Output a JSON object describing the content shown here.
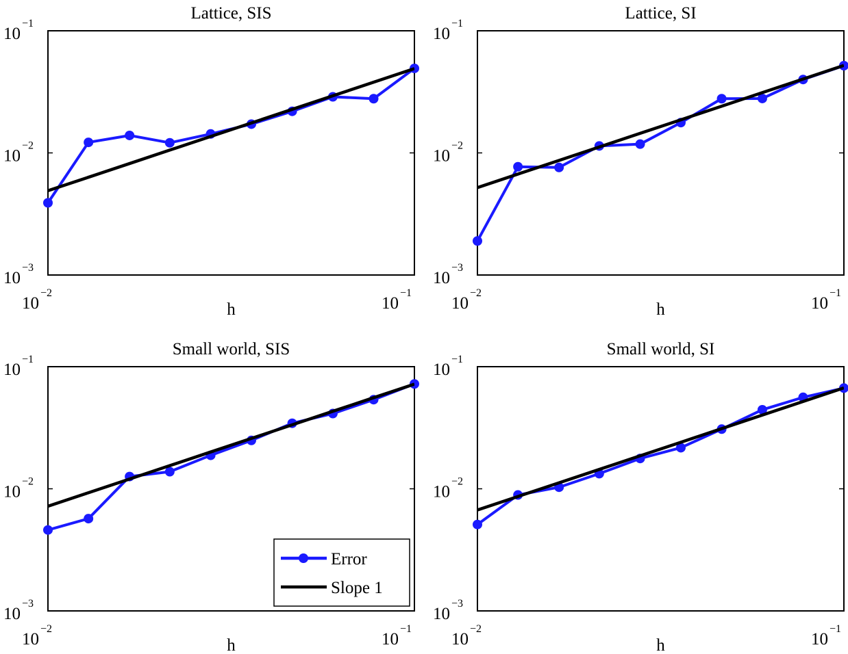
{
  "chart_data": [
    {
      "type": "line",
      "title": "Lattice, SIS",
      "xlabel": "h",
      "ylabel": "",
      "xscale": "log",
      "yscale": "log",
      "xlim": [
        0.01,
        0.1
      ],
      "ylim": [
        0.001,
        0.1
      ],
      "xticks": [
        {
          "base": "10",
          "exp": "−2"
        },
        {
          "base": "10",
          "exp": "−1"
        }
      ],
      "yticks": [
        {
          "base": "10",
          "exp": "−3"
        },
        {
          "base": "10",
          "exp": "−2"
        },
        {
          "base": "10",
          "exp": "−1"
        }
      ],
      "grid": false,
      "x": [
        0.01,
        0.0129,
        0.0167,
        0.0215,
        0.0278,
        0.0359,
        0.0464,
        0.0599,
        0.0774,
        0.1
      ],
      "series": [
        {
          "key": "error",
          "color": "#1a1aff",
          "marker": "circle",
          "values": [
            0.0039,
            0.0122,
            0.0139,
            0.0121,
            0.0143,
            0.0172,
            0.0219,
            0.0288,
            0.0278,
            0.0492
          ]
        },
        {
          "key": "slope",
          "color": "#000000",
          "marker": "none",
          "values": [
            0.0049,
            0.00632,
            0.00818,
            0.01054,
            0.01362,
            0.01759,
            0.02274,
            0.02935,
            0.03793,
            0.049
          ]
        }
      ]
    },
    {
      "type": "line",
      "title": "Lattice, SI",
      "xlabel": "h",
      "ylabel": "",
      "xscale": "log",
      "yscale": "log",
      "xlim": [
        0.01,
        0.1
      ],
      "ylim": [
        0.001,
        0.1
      ],
      "xticks": [
        {
          "base": "10",
          "exp": "−2"
        },
        {
          "base": "10",
          "exp": "−1"
        }
      ],
      "yticks": [
        {
          "base": "10",
          "exp": "−3"
        },
        {
          "base": "10",
          "exp": "−2"
        },
        {
          "base": "10",
          "exp": "−1"
        }
      ],
      "grid": false,
      "x": [
        0.01,
        0.0129,
        0.0167,
        0.0215,
        0.0278,
        0.0359,
        0.0464,
        0.0599,
        0.0774,
        0.1
      ],
      "series": [
        {
          "key": "error",
          "color": "#1a1aff",
          "marker": "circle",
          "values": [
            0.0019,
            0.0077,
            0.0076,
            0.0114,
            0.0118,
            0.0177,
            0.0278,
            0.0279,
            0.0399,
            0.0518
          ]
        },
        {
          "key": "slope",
          "color": "#000000",
          "marker": "none",
          "values": [
            0.0052,
            0.00671,
            0.00868,
            0.01118,
            0.01446,
            0.01867,
            0.02413,
            0.03115,
            0.04025,
            0.052
          ]
        }
      ]
    },
    {
      "type": "line",
      "title": "Small world, SIS",
      "xlabel": "h",
      "ylabel": "",
      "xscale": "log",
      "yscale": "log",
      "xlim": [
        0.01,
        0.1
      ],
      "ylim": [
        0.001,
        0.1
      ],
      "xticks": [
        {
          "base": "10",
          "exp": "−2"
        },
        {
          "base": "10",
          "exp": "−1"
        }
      ],
      "yticks": [
        {
          "base": "10",
          "exp": "−3"
        },
        {
          "base": "10",
          "exp": "−2"
        },
        {
          "base": "10",
          "exp": "−1"
        }
      ],
      "grid": false,
      "legend": {
        "position": "lower right",
        "entries": [
          {
            "label": "Error",
            "key": "error"
          },
          {
            "label": "Slope 1",
            "key": "slope"
          }
        ]
      },
      "x": [
        0.01,
        0.0129,
        0.0167,
        0.0215,
        0.0278,
        0.0359,
        0.0464,
        0.0599,
        0.0774,
        0.1
      ],
      "series": [
        {
          "key": "error",
          "color": "#1a1aff",
          "marker": "circle",
          "values": [
            0.0046,
            0.0057,
            0.0126,
            0.0138,
            0.0188,
            0.0249,
            0.0344,
            0.0413,
            0.0537,
            0.0722
          ]
        },
        {
          "key": "slope",
          "color": "#000000",
          "marker": "none",
          "values": [
            0.0072,
            0.00929,
            0.01202,
            0.01548,
            0.02002,
            0.02585,
            0.03341,
            0.04313,
            0.05573,
            0.072
          ]
        }
      ]
    },
    {
      "type": "line",
      "title": "Small world, SI",
      "xlabel": "h",
      "ylabel": "",
      "xscale": "log",
      "yscale": "log",
      "xlim": [
        0.01,
        0.1
      ],
      "ylim": [
        0.001,
        0.1
      ],
      "xticks": [
        {
          "base": "10",
          "exp": "−2"
        },
        {
          "base": "10",
          "exp": "−1"
        }
      ],
      "yticks": [
        {
          "base": "10",
          "exp": "−3"
        },
        {
          "base": "10",
          "exp": "−2"
        },
        {
          "base": "10",
          "exp": "−1"
        }
      ],
      "grid": false,
      "x": [
        0.01,
        0.0129,
        0.0167,
        0.0215,
        0.0278,
        0.0359,
        0.0464,
        0.0599,
        0.0774,
        0.1
      ],
      "series": [
        {
          "key": "error",
          "color": "#1a1aff",
          "marker": "circle",
          "values": [
            0.0051,
            0.0089,
            0.0103,
            0.0133,
            0.0177,
            0.0217,
            0.0308,
            0.0444,
            0.0561,
            0.0668
          ]
        },
        {
          "key": "slope",
          "color": "#000000",
          "marker": "none",
          "values": [
            0.0067,
            0.00865,
            0.01119,
            0.01441,
            0.01863,
            0.02405,
            0.03109,
            0.04013,
            0.05186,
            0.067
          ]
        }
      ]
    }
  ]
}
